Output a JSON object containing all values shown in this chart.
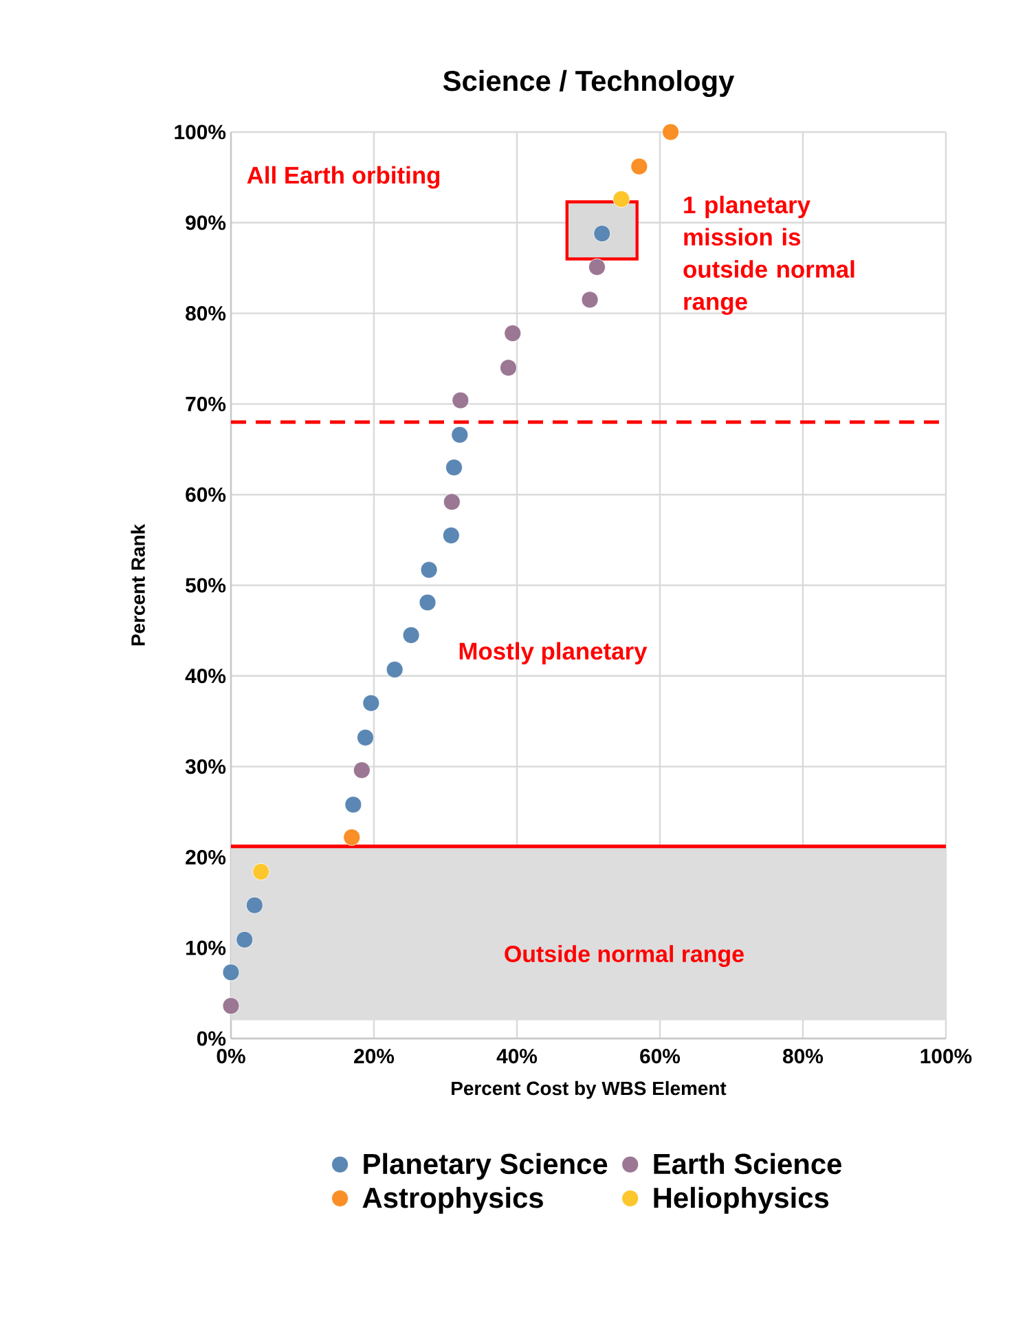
{
  "chart_data": {
    "type": "scatter",
    "title": "Science / Technology",
    "xlabel": "Percent Cost by WBS Element",
    "ylabel": "Percent Rank",
    "xlim": [
      0,
      100
    ],
    "ylim": [
      0,
      100
    ],
    "xticks": [
      {
        "value": 0,
        "label": "0%"
      },
      {
        "value": 20,
        "label": "20%"
      },
      {
        "value": 40,
        "label": "40%"
      },
      {
        "value": 60,
        "label": "60%"
      },
      {
        "value": 80,
        "label": "80%"
      },
      {
        "value": 100,
        "label": "100%"
      }
    ],
    "yticks": [
      {
        "value": 0,
        "label": "0%"
      },
      {
        "value": 10,
        "label": "10%"
      },
      {
        "value": 20,
        "label": "20%"
      },
      {
        "value": 30,
        "label": "30%"
      },
      {
        "value": 40,
        "label": "40%"
      },
      {
        "value": 50,
        "label": "50%"
      },
      {
        "value": 60,
        "label": "60%"
      },
      {
        "value": 70,
        "label": "70%"
      },
      {
        "value": 80,
        "label": "80%"
      },
      {
        "value": 90,
        "label": "90%"
      },
      {
        "value": 100,
        "label": "100%"
      }
    ],
    "grid": true,
    "legend": "bottom",
    "series": [
      {
        "name": "Planetary Science",
        "color": "#5b87b4",
        "x": [
          0,
          1.9,
          3.3,
          17.1,
          18.8,
          19.6,
          22.9,
          25.2,
          27.5,
          27.7,
          30.8,
          31.2,
          32.0,
          51.9
        ],
        "values": [
          7.3,
          10.9,
          14.7,
          25.8,
          33.2,
          37.0,
          40.7,
          44.5,
          48.1,
          51.7,
          55.5,
          63.0,
          66.6,
          88.8
        ]
      },
      {
        "name": "Earth Science",
        "color": "#9b7793",
        "x": [
          0,
          18.3,
          30.9,
          32.1,
          38.8,
          39.4,
          50.2,
          51.2
        ],
        "values": [
          3.6,
          29.6,
          59.2,
          70.4,
          74.0,
          77.8,
          81.5,
          85.1
        ]
      },
      {
        "name": "Astrophysics",
        "color": "#f98f26",
        "x": [
          16.9,
          57.1,
          61.5
        ],
        "values": [
          22.2,
          96.2,
          100
        ]
      },
      {
        "name": "Heliophysics",
        "color": "#fdc62d",
        "x": [
          4.2,
          54.6
        ],
        "values": [
          18.4,
          92.6
        ]
      }
    ],
    "ref_lines": [
      {
        "axis": "y",
        "value": 68,
        "color": "#ff0000",
        "line_style": "dashed"
      },
      {
        "axis": "y",
        "value": 21.2,
        "color": "#ff0000",
        "line_style": "solid"
      }
    ],
    "bands": [
      {
        "axis": "y",
        "from": 2,
        "to": 21.2,
        "label": "Outside normal range",
        "color": "#dddddd"
      }
    ],
    "annotations": [
      "All Earth orbiting",
      "1 planetary mission is outside normal range",
      "Mostly planetary"
    ]
  }
}
